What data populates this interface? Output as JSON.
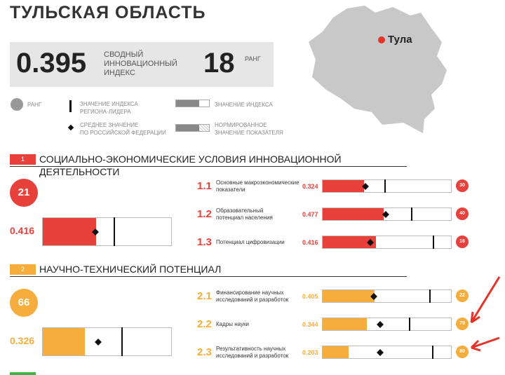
{
  "title": "ТУЛЬСКАЯ ОБЛАСТЬ",
  "summary": {
    "index": "0.395",
    "index_label": [
      "СВОДНЫЙ",
      "ИННОВАЦИОННЫЙ",
      "ИНДЕКС"
    ],
    "rank": "18",
    "rank_label": "РАНГ"
  },
  "map": {
    "city": "Тула",
    "region_color": "#c8c8c8",
    "dot_color": "#e5332a"
  },
  "legend": {
    "rank": "РАНГ",
    "leader": [
      "ЗНАЧЕНИЕ ИНДЕКСА",
      "РЕГИОНА-ЛИДЕРА"
    ],
    "avg": [
      "СРЕДНЕЕ ЗНАЧЕНИЕ",
      "ПО РОССИЙСКОЙ ФЕДЕРАЦИИ"
    ],
    "index": "ЗНАЧЕНИЕ ИНДЕКСА",
    "norm": [
      "НОРМИРОВАННОЕ",
      "ЗНАЧЕНИЕ ПОКАЗАТЕЛЯ"
    ]
  },
  "sections": [
    {
      "num": "1",
      "title": "СОЦИАЛЬНО-ЭКОНОМИЧЕСКИЕ УСЛОВИЯ ИННОВАЦИОННОЙ ДЕЯТЕЛЬНОСТИ",
      "color": "#e8403a",
      "rank": "21",
      "value": "0.416",
      "fill": 0.416,
      "avg": 0.41,
      "leader": 0.55,
      "items": [
        {
          "code": "1.1",
          "label": [
            "Основные макроэкономические",
            "показатели"
          ],
          "value": "0.324",
          "fill": 0.324,
          "avg": 0.335,
          "leader": 0.48,
          "rank": "30"
        },
        {
          "code": "1.2",
          "label": [
            "Образовательный",
            "потенциал населения"
          ],
          "value": "0.477",
          "fill": 0.477,
          "avg": 0.49,
          "leader": 0.69,
          "rank": "40"
        },
        {
          "code": "1.3",
          "label": [
            "Потенциал цифровизации",
            ""
          ],
          "value": "0.416",
          "fill": 0.416,
          "avg": 0.37,
          "leader": 0.86,
          "rank": "16"
        }
      ]
    },
    {
      "num": "2",
      "title": "НАУЧНО-ТЕХНИЧЕСКИЙ ПОТЕНЦИАЛ",
      "color": "#f7ad3c",
      "rank": "66",
      "value": "0.326",
      "fill": 0.326,
      "avg": 0.43,
      "leader": 0.61,
      "items": [
        {
          "code": "2.1",
          "label": [
            "Финансирование научных",
            "исследований и разработок"
          ],
          "value": "0.405",
          "fill": 0.405,
          "avg": 0.4,
          "leader": 0.83,
          "rank": "22"
        },
        {
          "code": "2.2",
          "label": [
            "Кадры науки",
            ""
          ],
          "value": "0.344",
          "fill": 0.344,
          "avg": 0.45,
          "leader": 0.67,
          "rank": "79"
        },
        {
          "code": "2.3",
          "label": [
            "Результативность научных",
            "исследований и разработок"
          ],
          "value": "0.203",
          "fill": 0.203,
          "avg": 0.45,
          "leader": 0.85,
          "rank": "80"
        }
      ]
    }
  ]
}
